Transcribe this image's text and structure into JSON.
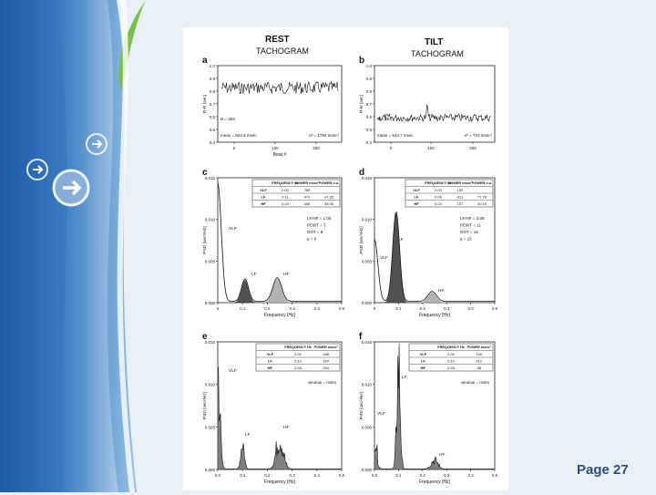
{
  "slide": {
    "page_label": "Page 27",
    "colors": {
      "sidebar_blue": "#3f7fc0",
      "sidebar_green": "#7ac143",
      "background": "#e9f0f6",
      "page_label": "#2a4f7a"
    },
    "decorative_icons": [
      "arrow-right-circle-icon",
      "arrow-right-circle-icon",
      "arrow-right-circle-icon"
    ]
  },
  "figure": {
    "columns": {
      "rest": "REST",
      "tilt": "TILT"
    },
    "tachogram_label": "TACHOGRAM",
    "panels": {
      "a": {
        "letter": "a",
        "ylabel": "R-R [sec]",
        "xlabel": "Beat #",
        "yticks": [
          "1.0",
          "0.9",
          "0.8",
          "0.7",
          "0.6",
          "0.5",
          "0.4"
        ],
        "xticks": [
          "0",
          "100",
          "200"
        ],
        "n_text": "N = 284",
        "mean_text": "mean = 842.5 msec",
        "var_text": "σ² = 1794 msec²"
      },
      "b": {
        "letter": "b",
        "ylabel": "R-R [sec]",
        "yticks": [
          "1.0",
          "0.9",
          "0.8",
          "0.7",
          "0.6",
          "0.5",
          "0.4"
        ],
        "xticks": [
          "0",
          "100",
          "200"
        ],
        "n_text": "N = 254",
        "mean_text": "mean = 644.7 msec",
        "var_text": "σ² = 723 msec²"
      },
      "c": {
        "letter": "c",
        "ylabel": "PSD [sec²/Hz]",
        "xlabel": "Frequency [Hz]",
        "yticks": [
          "0.015",
          "0.010",
          "0.005",
          "0.000"
        ],
        "xticks": [
          "0",
          "0.1",
          "0.2",
          "0.3",
          "0.4",
          "0.5"
        ],
        "table": {
          "headers": [
            "FREQUENCY Hz",
            "POWER msec²",
            "POWER n.u."
          ],
          "rows": [
            [
              "VLF",
              "0.00",
              "785",
              ""
            ],
            [
              "LF",
              "0.11",
              "479",
              "47.35"
            ],
            [
              "HF",
              "0.24",
              "458",
              "45.05"
            ]
          ]
        },
        "stats": [
          "LF/HF = 1.05",
          "PEWT = 3",
          "OOT = 9",
          "p = 9"
        ],
        "band_labels": {
          "vlf": "VLF",
          "lf": "LF",
          "hf": "HF"
        }
      },
      "d": {
        "letter": "d",
        "ylabel": "PSD [sec²/Hz]",
        "xlabel": "Frequency [Hz]",
        "yticks": [
          "0.015",
          "0.010",
          "0.005",
          "0.000"
        ],
        "xticks": [
          "0",
          "0.1",
          "0.2",
          "0.3",
          "0.4",
          "0.5"
        ],
        "table": {
          "headers": [
            "FREQUENCY Hz",
            "POWER msec²",
            "POWER n.u."
          ],
          "rows": [
            [
              "VLF",
              "0.00",
              "152",
              ""
            ],
            [
              "LF",
              "0.09",
              "413",
              "77.78"
            ],
            [
              "HF",
              "0.24",
              "107",
              "20.15"
            ]
          ]
        },
        "stats": [
          "LF/HF = 3.85",
          "PEWT = 11",
          "OOT = 15",
          "p = 15"
        ],
        "band_labels": {
          "vlf": "VLF",
          "lf": "LF",
          "hf": "HF"
        }
      },
      "e": {
        "letter": "e",
        "ylabel": "PSD [sec²/Hz]",
        "xlabel": "Frequency [Hz]",
        "yticks": [
          "0.015",
          "0.010",
          "0.005",
          "0.000"
        ],
        "xticks": [
          "0.0",
          "0.1",
          "0.2",
          "0.3",
          "0.4",
          "0.5"
        ],
        "table": {
          "headers": [
            "FREQUENCY Hz",
            "POWER msec²"
          ],
          "rows": [
            [
              "VLF",
              "0.00",
              "288"
            ],
            [
              "LF",
              "0.10",
              "164"
            ],
            [
              "HF",
              "0.25",
              "254"
            ]
          ]
        },
        "window_text": "window = Hann",
        "band_labels": {
          "vlf": "VLF",
          "lf": "LF",
          "hf": "HF"
        }
      },
      "f": {
        "letter": "f",
        "ylabel": "PSD [sec²/Hz]",
        "xlabel": "Frequency [Hz]",
        "yticks": [
          "0.015",
          "0.010",
          "0.005",
          "0.000"
        ],
        "xticks": [
          "0.0",
          "0.1",
          "0.2",
          "0.3",
          "0.4",
          "0.5"
        ],
        "table": {
          "headers": [
            "FREQUENCY Hz",
            "POWER msec²"
          ],
          "rows": [
            [
              "VLF",
              "0.00",
              "140"
            ],
            [
              "LF",
              "0.10",
              "312"
            ],
            [
              "HF",
              "0.25",
              "58"
            ]
          ]
        },
        "window_text": "window = Hann",
        "band_labels": {
          "vlf": "VLF",
          "lf": "LF",
          "hf": "HF"
        }
      }
    }
  }
}
